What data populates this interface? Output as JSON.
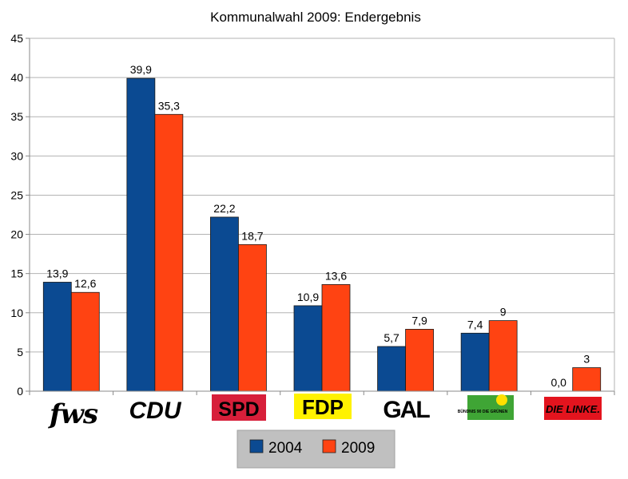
{
  "chart_data": {
    "type": "bar",
    "title": "Kommunalwahl 2009: Endergebnis",
    "xlabel": "",
    "ylabel": "",
    "ylim": [
      0,
      45
    ],
    "yticks": [
      0,
      5,
      10,
      15,
      20,
      25,
      30,
      35,
      40,
      45
    ],
    "grid": true,
    "legend_position": "bottom",
    "categories": [
      "FWS",
      "CDU",
      "SPD",
      "FDP",
      "GAL",
      "Bündnis 90 Die Grünen",
      "DIE LINKE."
    ],
    "series": [
      {
        "name": "2004",
        "color": "#0b4a92",
        "values": [
          13.9,
          39.9,
          22.2,
          10.9,
          5.7,
          7.4,
          0.0
        ],
        "labels": [
          "13,9",
          "39,9",
          "22,2",
          "10,9",
          "5,7",
          "7,4",
          "0,0"
        ]
      },
      {
        "name": "2009",
        "color": "#ff4312",
        "values": [
          12.6,
          35.3,
          18.7,
          13.6,
          7.9,
          9,
          3
        ],
        "labels": [
          "12,6",
          "35,3",
          "18,7",
          "13,6",
          "7,9",
          "9",
          "3"
        ]
      }
    ],
    "party_logos": [
      {
        "name": "fws",
        "text": "fws",
        "color": "#ff6a00"
      },
      {
        "name": "cdu",
        "text": "CDU",
        "color": "#c8141e"
      },
      {
        "name": "spd",
        "text": "SPD",
        "color": "#ffffff",
        "bg": "#d71f3a"
      },
      {
        "name": "fdp",
        "text": "FDP",
        "color": "#1a3d97",
        "bg": "#fff200"
      },
      {
        "name": "gal",
        "text": "GAL",
        "color": "#000000"
      },
      {
        "name": "gruene",
        "text": "BÜNDNIS 90 DIE GRÜNEN",
        "color": "#ffffff",
        "bg": "#3fa535"
      },
      {
        "name": "linke",
        "text": "DIE LINKE.",
        "color": "#ffffff",
        "bg": "#e3141e"
      }
    ]
  }
}
